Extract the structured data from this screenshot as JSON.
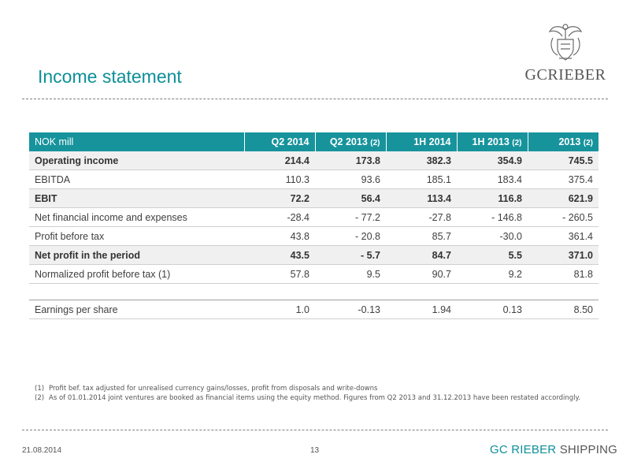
{
  "header": {
    "title": "Income statement",
    "logo_text": "GCRIEBER"
  },
  "table": {
    "headers": [
      {
        "label": "NOK mill",
        "note": ""
      },
      {
        "label": "Q2 2014",
        "note": ""
      },
      {
        "label": "Q2 2013",
        "note": "(2)"
      },
      {
        "label": "1H 2014",
        "note": ""
      },
      {
        "label": "1H 2013",
        "note": "(2)"
      },
      {
        "label": "2013",
        "note": "(2)"
      }
    ],
    "rows": [
      {
        "label": "Operating income",
        "values": [
          "214.4",
          "173.8",
          "382.3",
          "354.9",
          "745.5"
        ]
      },
      {
        "label": "EBITDA",
        "values": [
          "110.3",
          "93.6",
          "185.1",
          "183.4",
          "375.4"
        ]
      },
      {
        "label": "EBIT",
        "values": [
          "72.2",
          "56.4",
          "113.4",
          "116.8",
          "621.9"
        ]
      },
      {
        "label": "Net financial income and expenses",
        "values": [
          "-28.4",
          "- 77.2",
          "-27.8",
          "- 146.8",
          "- 260.5"
        ]
      },
      {
        "label": "Profit before tax",
        "values": [
          "43.8",
          "- 20.8",
          "85.7",
          "-30.0",
          "361.4"
        ]
      },
      {
        "label": "Net profit in the period",
        "values": [
          "43.5",
          "- 5.7",
          "84.7",
          "5.5",
          "371.0"
        ]
      },
      {
        "label": "Normalized profit before tax (1)",
        "values": [
          "57.8",
          "9.5",
          "90.7",
          "9.2",
          "81.8"
        ]
      },
      {
        "label": "Earnings per share",
        "values": [
          "1.0",
          "-0.13",
          "1.94",
          "0.13",
          "8.50"
        ]
      }
    ]
  },
  "footnotes": [
    {
      "num": "(1)",
      "text": "Profit bef. tax adjusted for unrealised currency gains/losses, profit from disposals and write-downs"
    },
    {
      "num": "(2)",
      "text": "As of 01.01.2014 joint ventures are booked as financial items using the equity method. Figures from Q2 2013 and 31.12.2013 have been restated accordingly."
    }
  ],
  "footer": {
    "date": "21.08.2014",
    "page_number": "13",
    "brand_part1": "GC RIEBER",
    "brand_part2": " SHIPPING"
  },
  "colors": {
    "accent": "#0e8f98",
    "header_fill": "#17939c"
  }
}
